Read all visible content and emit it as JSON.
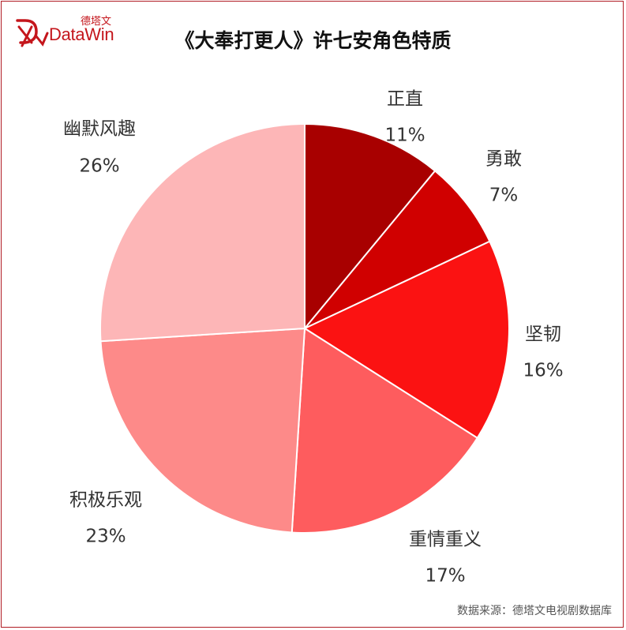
{
  "logo": {
    "cn": "德塔文",
    "en": "DataWin"
  },
  "source": "数据来源：德塔文电视剧数据库",
  "chart_data": {
    "type": "pie",
    "title": "《大奉打更人》许七安角色特质",
    "slices": [
      {
        "label": "正直",
        "value": 11,
        "display": "11%",
        "color": "#a80000"
      },
      {
        "label": "勇敢",
        "value": 7,
        "display": "7%",
        "color": "#d00000"
      },
      {
        "label": "坚韧",
        "value": 16,
        "display": "16%",
        "color": "#fb1212"
      },
      {
        "label": "重情重义",
        "value": 17,
        "display": "17%",
        "color": "#fe5c5e"
      },
      {
        "label": "积极乐观",
        "value": 23,
        "display": "23%",
        "color": "#fd8a89"
      },
      {
        "label": "幽默风趣",
        "value": 26,
        "display": "26%",
        "color": "#fdb6b7"
      }
    ]
  }
}
